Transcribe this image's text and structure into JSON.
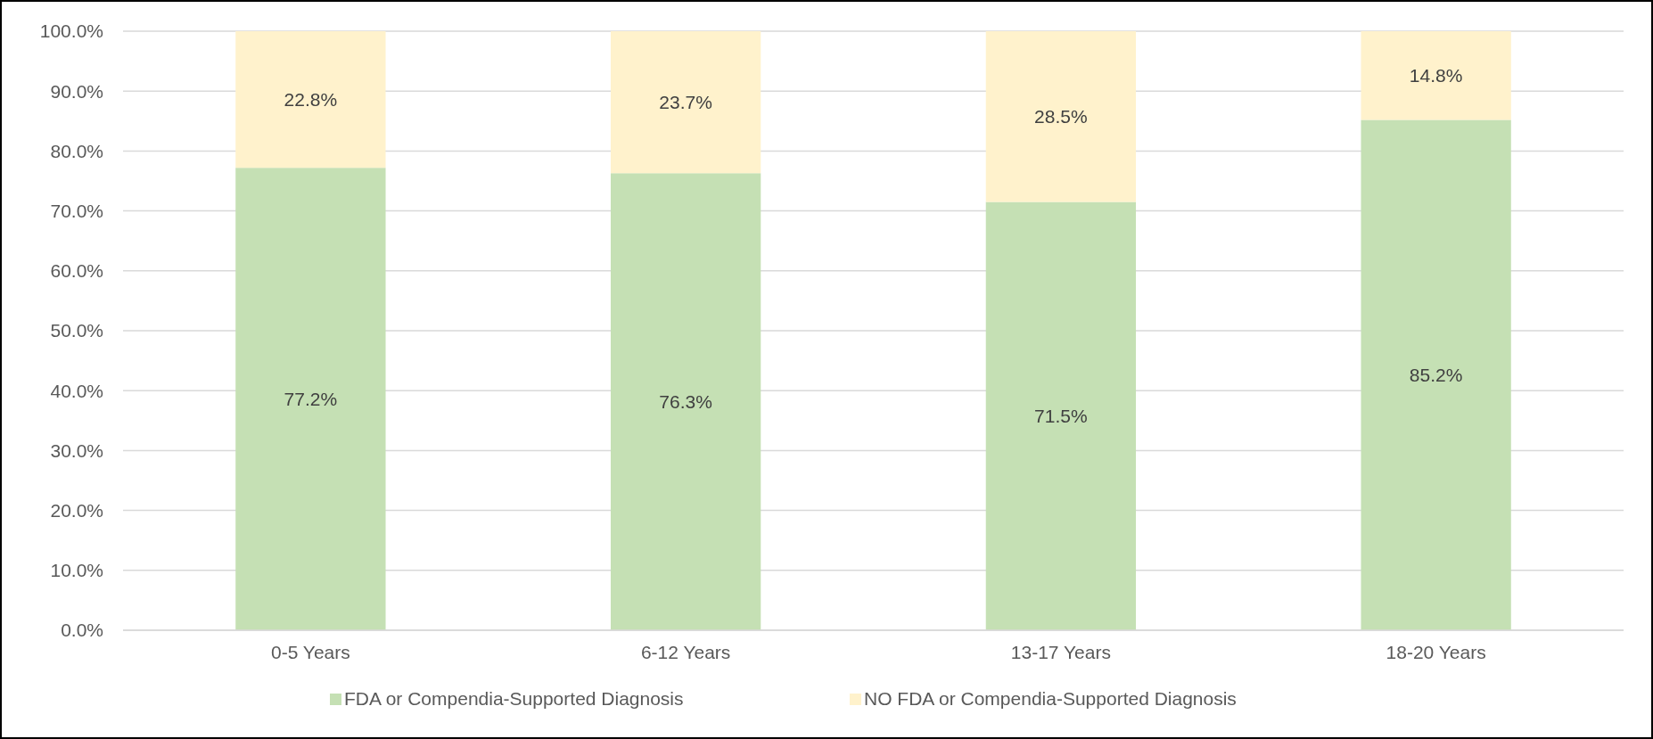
{
  "chart_data": {
    "type": "bar",
    "stacked": true,
    "categories": [
      "0-5 Years",
      "6-12 Years",
      "13-17 Years",
      "18-20 Years"
    ],
    "series": [
      {
        "name": "FDA or Compendia-Supported Diagnosis",
        "color": "#c5e0b4",
        "values": [
          77.2,
          76.3,
          71.5,
          85.2
        ],
        "value_labels": [
          "77.2%",
          "76.3%",
          "71.5%",
          "85.2%"
        ]
      },
      {
        "name": "NO FDA or Compendia-Supported Diagnosis",
        "color": "#fff2cc",
        "values": [
          22.8,
          23.7,
          28.5,
          14.8
        ],
        "value_labels": [
          "22.8%",
          "23.7%",
          "28.5%",
          "14.8%"
        ]
      }
    ],
    "ylim": [
      0,
      100
    ],
    "yticks": [
      {
        "value": 0,
        "label": "0.0%"
      },
      {
        "value": 10,
        "label": "10.0%"
      },
      {
        "value": 20,
        "label": "20.0%"
      },
      {
        "value": 30,
        "label": "30.0%"
      },
      {
        "value": 40,
        "label": "40.0%"
      },
      {
        "value": 50,
        "label": "50.0%"
      },
      {
        "value": 60,
        "label": "60.0%"
      },
      {
        "value": 70,
        "label": "70.0%"
      },
      {
        "value": 80,
        "label": "80.0%"
      },
      {
        "value": 90,
        "label": "90.0%"
      },
      {
        "value": 100,
        "label": "100.0%"
      }
    ],
    "grid": "y",
    "legend": "bottom"
  }
}
